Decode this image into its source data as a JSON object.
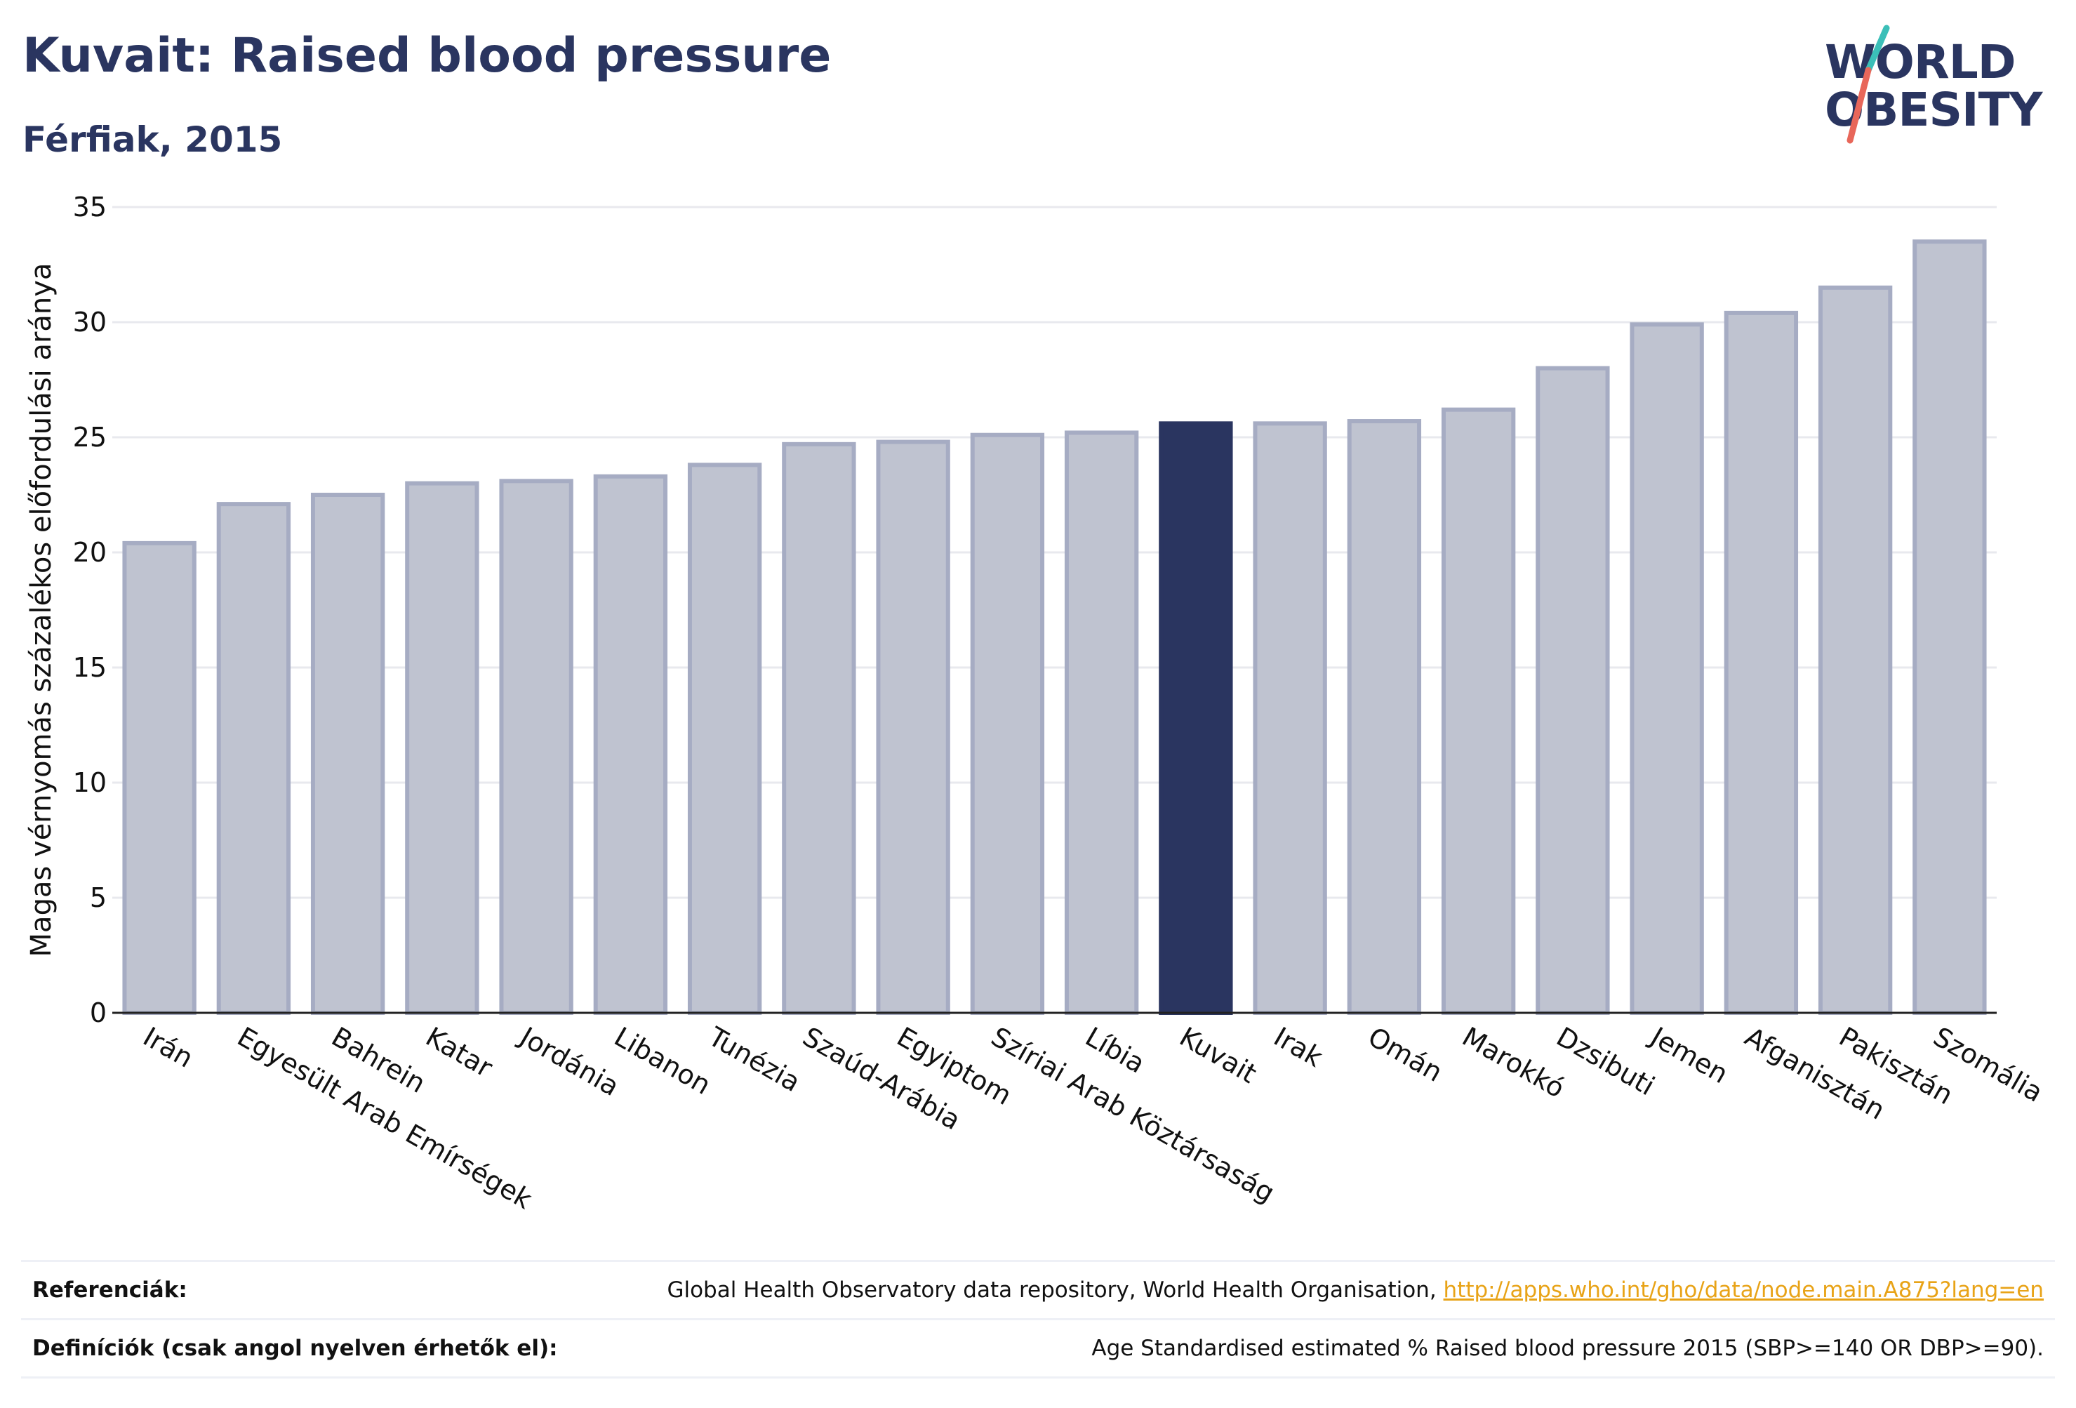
{
  "header": {
    "title": "Kuvait: Raised blood pressure",
    "subtitle": "Férfiak, 2015"
  },
  "logo": {
    "line1": "WORLD",
    "line2": "OBESITY"
  },
  "colors": {
    "highlight_bar": "#2a3560",
    "bar_fill": "#bfc3d0",
    "bar_border": "#a6acc3",
    "grid": "#e8e9ee",
    "logo_teal": "#3bbfb8",
    "logo_coral": "#e8675a",
    "link": "#e8a317"
  },
  "chart_data": {
    "type": "bar",
    "ylabel": "Magas vérnyomás százalékos előfordulási aránya",
    "ylim": [
      0,
      35
    ],
    "yticks": [
      "0",
      "5",
      "10",
      "15",
      "20",
      "25",
      "30",
      "35"
    ],
    "grid": true,
    "highlight": "Kuvait",
    "categories": [
      "Irán",
      "Egyesült Arab Emírségek",
      "Bahrein",
      "Katar",
      "Jordánia",
      "Libanon",
      "Tunézia",
      "Szaúd-Arábia",
      "Egyiptom",
      "Szíriai Arab Köztársaság",
      "Líbia",
      "Kuvait",
      "Irak",
      "Omán",
      "Marokkó",
      "Dzsibuti",
      "Jemen",
      "Afganisztán",
      "Pakisztán",
      "Szomália"
    ],
    "values": [
      20.4,
      22.1,
      22.5,
      23.0,
      23.1,
      23.3,
      23.8,
      24.7,
      24.8,
      25.1,
      25.2,
      25.6,
      25.6,
      25.7,
      26.2,
      28.0,
      29.9,
      30.4,
      31.5,
      33.5
    ]
  },
  "footer": {
    "references_label": "Referenciák:",
    "references_text": "Global Health Observatory data repository, World Health Organisation,",
    "references_link": "http://apps.who.int/gho/data/node.main.A875?lang=en",
    "definitions_label": "Definíciók (csak angol nyelven érhetők el):",
    "definitions_text": "Age Standardised estimated % Raised blood pressure 2015 (SBP>=140 OR DBP>=90)."
  }
}
